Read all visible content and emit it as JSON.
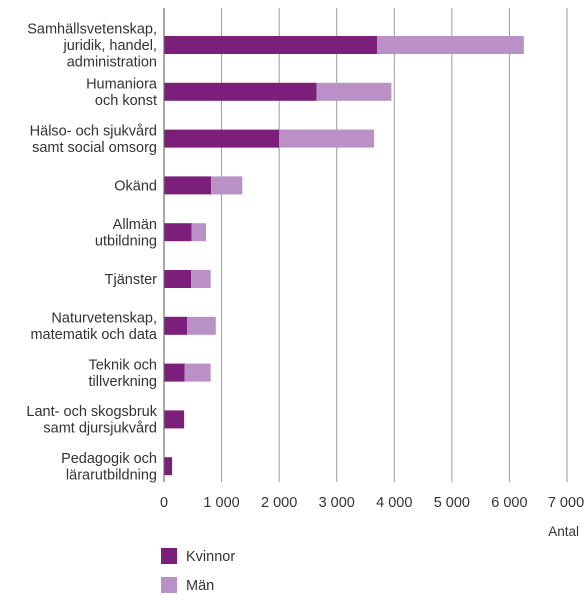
{
  "chart_data": {
    "type": "bar",
    "orientation": "horizontal",
    "stacked": true,
    "categories": [
      [
        "Samhällsvetenskap,",
        "juridik, handel,",
        "administration"
      ],
      [
        "Humaniora",
        "och konst"
      ],
      [
        "Hälso- och sjukvård",
        "samt social omsorg"
      ],
      [
        "Okänd"
      ],
      [
        "Allmän",
        "utbildning"
      ],
      [
        "Tjänster"
      ],
      [
        "Naturvetenskap,",
        "matematik och data"
      ],
      [
        "Teknik och",
        "tillverkning"
      ],
      [
        "Lant- och skogsbruk",
        "samt djursjukvård"
      ],
      [
        "Pedagogik och",
        "lärarutbildning"
      ]
    ],
    "series": [
      {
        "name": "Kvinnor",
        "color": "#7b1f7b",
        "values": [
          3700,
          2650,
          2000,
          820,
          480,
          470,
          400,
          360,
          350,
          140
        ]
      },
      {
        "name": "Män",
        "color": "#b991c6",
        "values": [
          2550,
          1300,
          1650,
          540,
          250,
          340,
          500,
          450,
          0,
          0
        ]
      }
    ],
    "xlabel": "Antal",
    "ylabel": "",
    "xlim": [
      0,
      7000
    ],
    "xticks": [
      "0",
      "1 000",
      "2 000",
      "3 000",
      "4 000",
      "5 000",
      "6 000",
      "7 000"
    ],
    "grid": "vertical",
    "legend_position": "bottom-left"
  }
}
